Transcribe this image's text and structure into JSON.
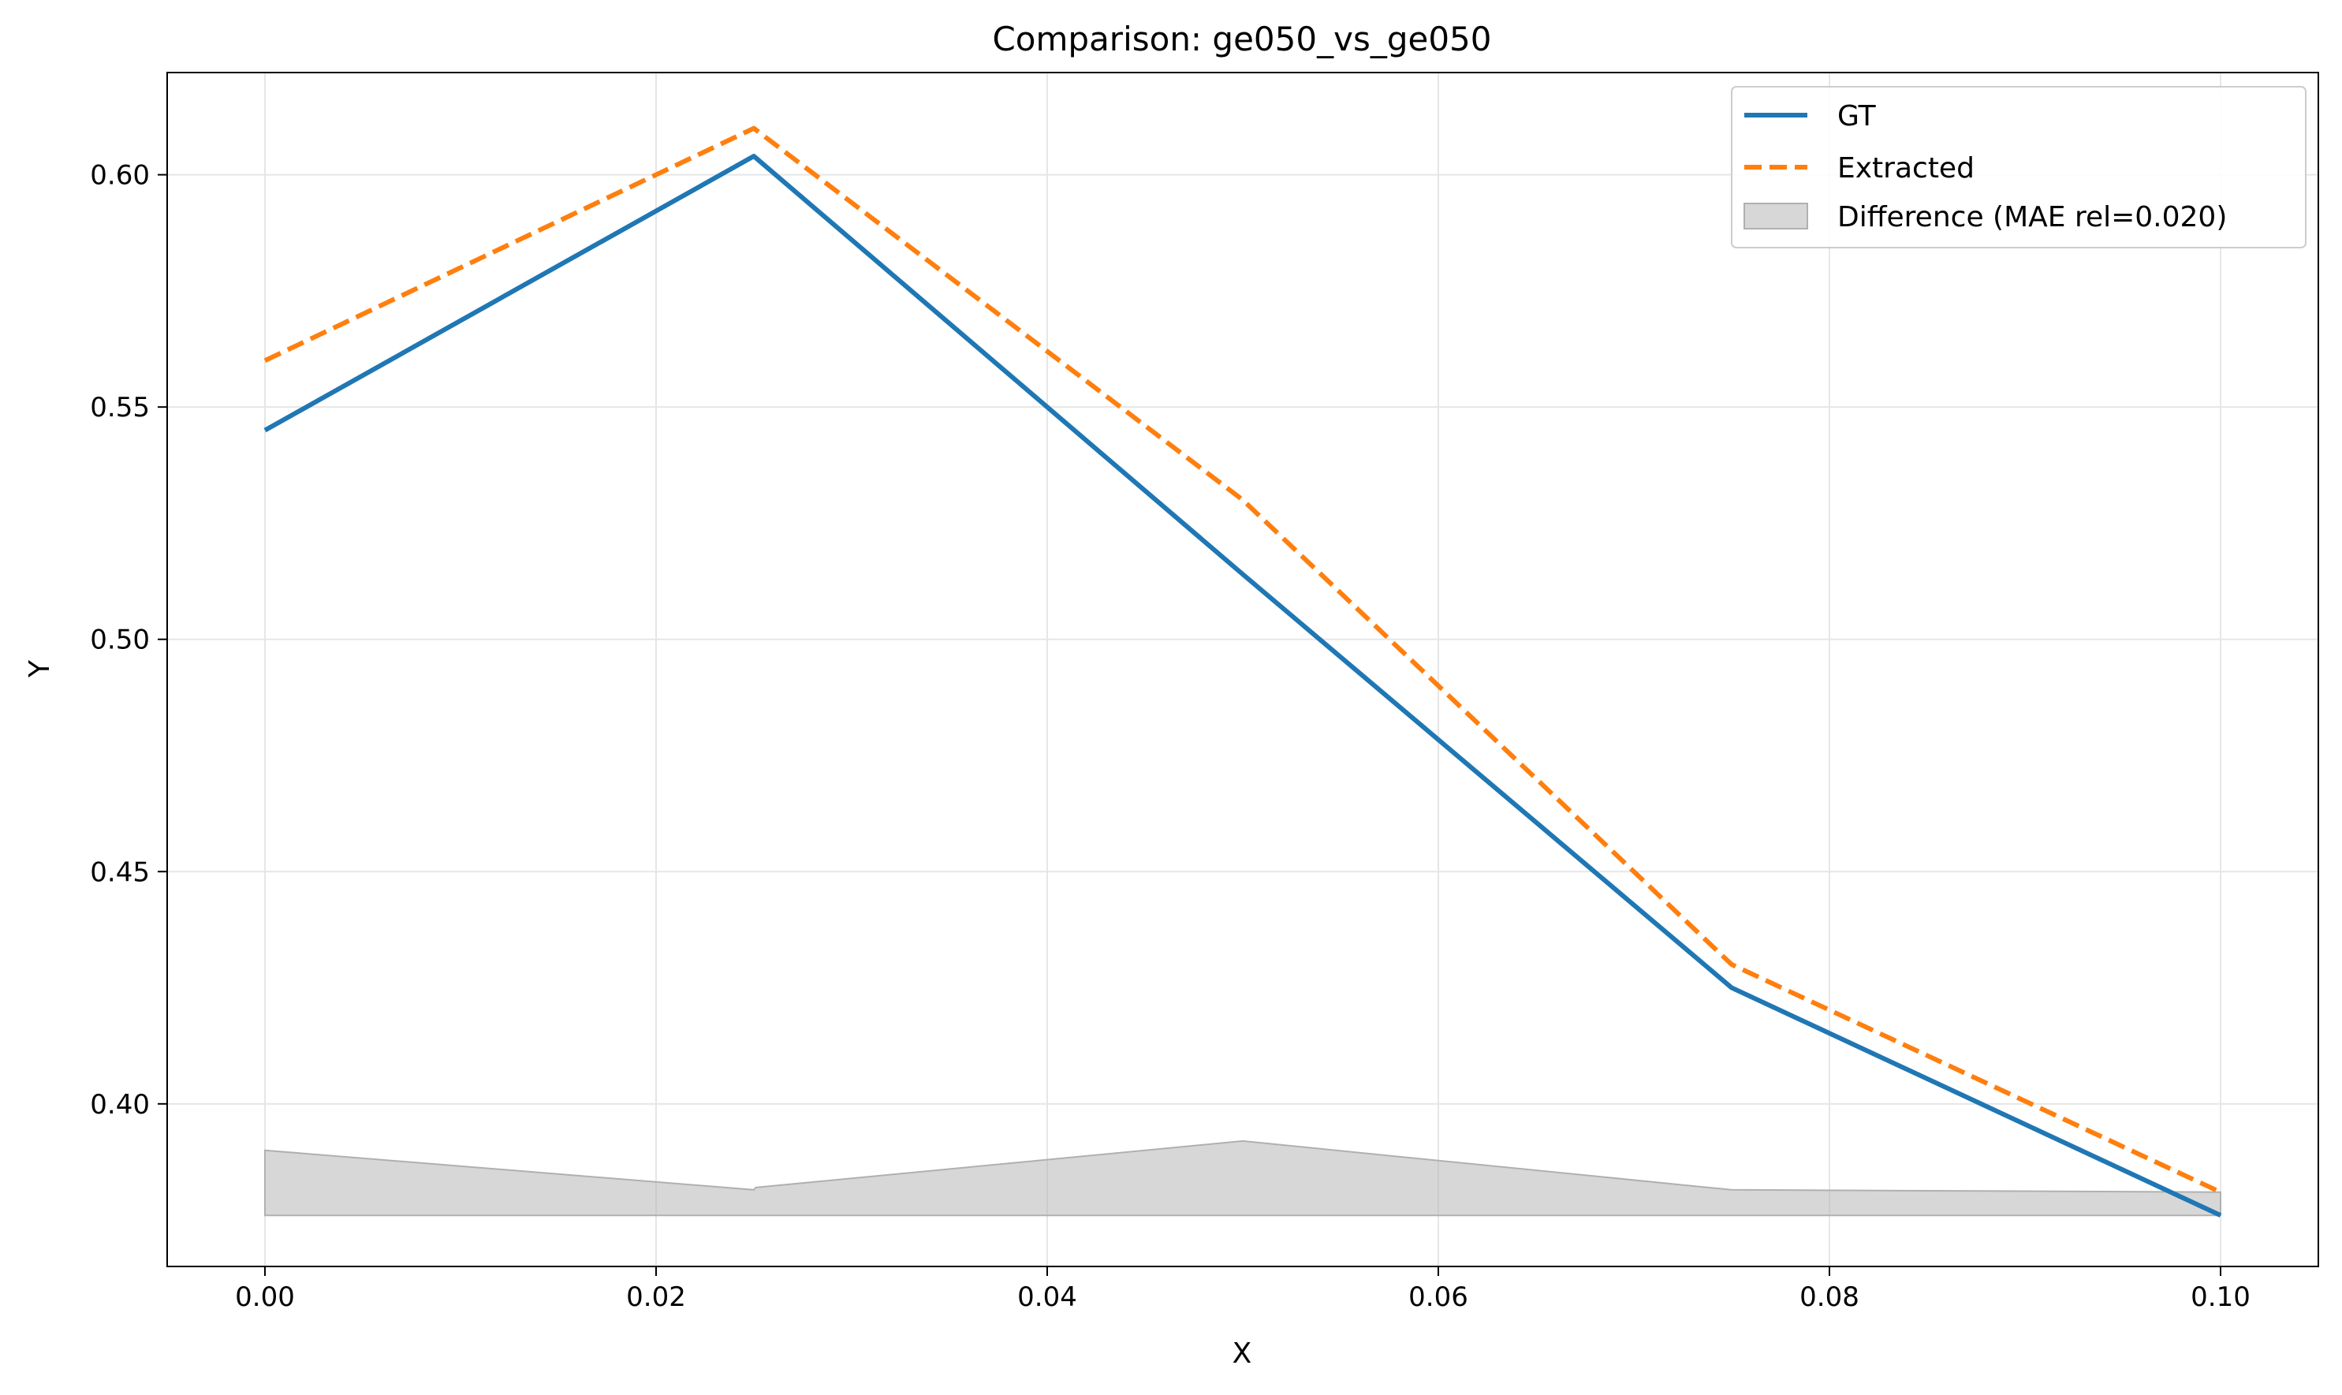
{
  "chart_data": {
    "type": "line",
    "title": "Comparison: ge050_vs_ge050",
    "xlabel": "X",
    "ylabel": "Y",
    "xlim": [
      -0.005,
      0.105
    ],
    "ylim": [
      0.365,
      0.622
    ],
    "x_ticks": [
      0.0,
      0.02,
      0.04,
      0.06,
      0.08,
      0.1
    ],
    "x_tick_labels": [
      "0.00",
      "0.02",
      "0.04",
      "0.06",
      "0.08",
      "0.10"
    ],
    "y_ticks": [
      0.4,
      0.45,
      0.5,
      0.55,
      0.6
    ],
    "y_tick_labels": [
      "0.40",
      "0.45",
      "0.50",
      "0.55",
      "0.60"
    ],
    "grid": true,
    "legend_position": "top-right",
    "series": [
      {
        "name": "GT",
        "style": "solid",
        "color": "#1f77b4",
        "x": [
          0.0,
          0.025,
          0.05,
          0.075,
          0.1
        ],
        "y": [
          0.545,
          0.604,
          0.514,
          0.425,
          0.376
        ]
      },
      {
        "name": "Extracted",
        "style": "dashed",
        "color": "#ff7f0e",
        "x": [
          0.0,
          0.025,
          0.05,
          0.075,
          0.1
        ],
        "y": [
          0.56,
          0.61,
          0.53,
          0.43,
          0.381
        ]
      }
    ],
    "difference_band": {
      "name": "Difference (MAE rel=0.020)",
      "color": "#b0b0b0",
      "baseline": 0.376,
      "x": [
        0.0,
        0.025,
        0.0251,
        0.05,
        0.075,
        0.1
      ],
      "y": [
        0.39,
        0.3815,
        0.382,
        0.392,
        0.3815,
        0.381
      ]
    }
  }
}
